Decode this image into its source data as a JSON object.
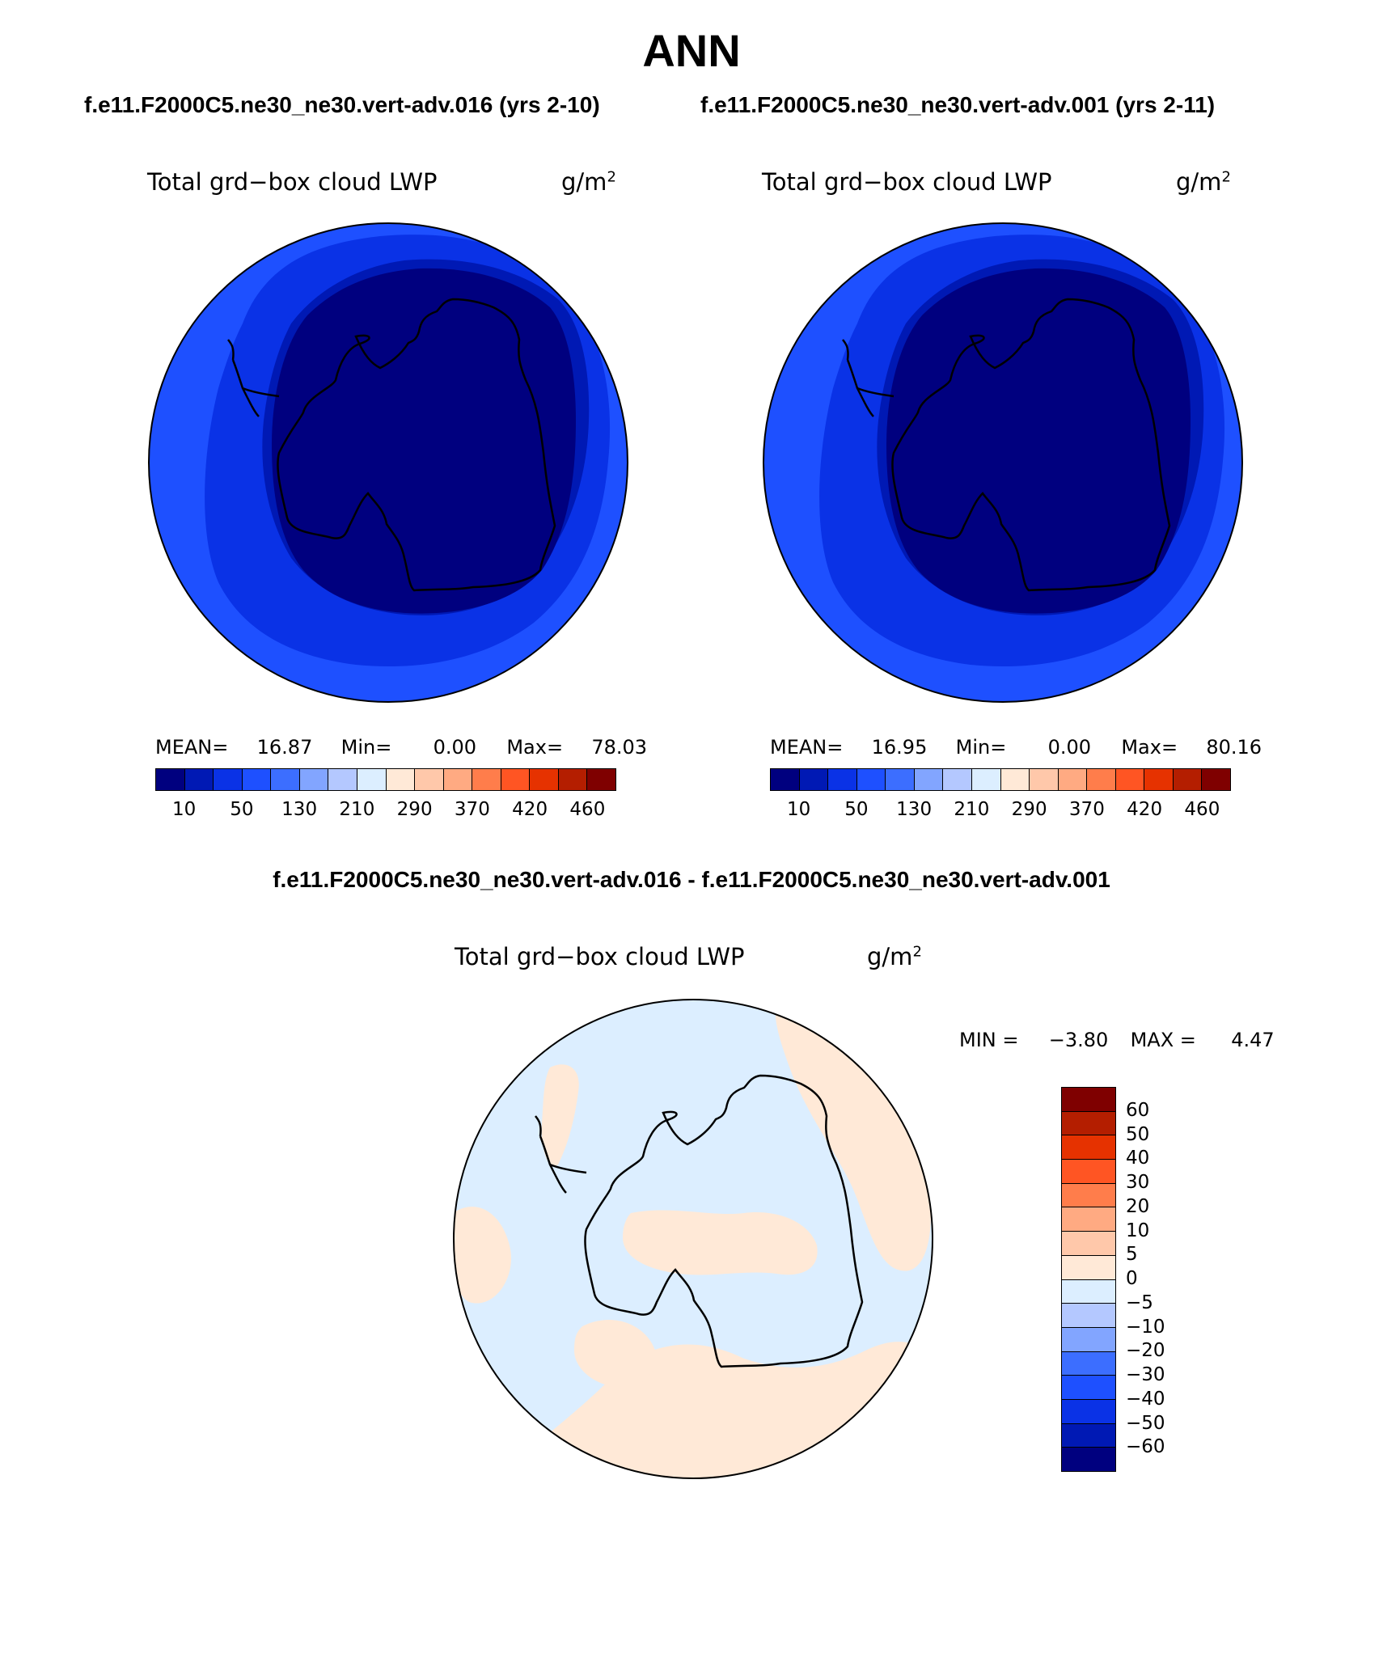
{
  "title": "ANN",
  "subtitles": {
    "left": "f.e11.F2000C5.ne30_ne30.vert-adv.016 (yrs 2-10)",
    "right": "f.e11.F2000C5.ne30_ne30.vert-adv.001 (yrs 2-11)",
    "diff": "f.e11.F2000C5.ne30_ne30.vert-adv.016 - f.e11.F2000C5.ne30_ne30.vert-adv.001"
  },
  "panels": [
    {
      "variable": "Total grd−box cloud LWP",
      "units_base": "g/m",
      "units_exp": "2",
      "stats": {
        "mean_label": "MEAN=",
        "mean": "16.87",
        "min_label": "Min=",
        "min": "0.00",
        "max_label": "Max=",
        "max": "78.03"
      }
    },
    {
      "variable": "Total grd−box cloud LWP",
      "units_base": "g/m",
      "units_exp": "2",
      "stats": {
        "mean_label": "MEAN=",
        "mean": "16.95",
        "min_label": "Min=",
        "min": "0.00",
        "max_label": "Max=",
        "max": "80.16"
      }
    },
    {
      "variable": "Total grd−box cloud LWP",
      "units_base": "g/m",
      "units_exp": "2",
      "stats": {
        "min_label": "MIN =",
        "min": "−3.80",
        "max_label": "MAX =",
        "max": "4.47"
      }
    }
  ],
  "colorbar_main": {
    "colors": [
      "#00007f",
      "#0019b4",
      "#0a32e6",
      "#1e50ff",
      "#3c6eff",
      "#82a5ff",
      "#b4c8ff",
      "#dceeff",
      "#ffe9d7",
      "#ffc8aa",
      "#ffaa82",
      "#ff7d4b",
      "#ff5523",
      "#e63200",
      "#b41e00",
      "#7f0000"
    ],
    "labels": [
      "10",
      "50",
      "130",
      "210",
      "290",
      "370",
      "420",
      "460"
    ]
  },
  "colorbar_diff": {
    "colors_top_to_bottom": [
      "#7f0000",
      "#b41e00",
      "#e63200",
      "#ff5523",
      "#ff7d4b",
      "#ffaa82",
      "#ffc8aa",
      "#ffe9d7",
      "#dceeff",
      "#b4c8ff",
      "#82a5ff",
      "#3c6eff",
      "#1e50ff",
      "#0a32e6",
      "#0019b4",
      "#00007f"
    ],
    "labels_top_to_bottom": [
      "60",
      "50",
      "40",
      "30",
      "20",
      "10",
      "5",
      "0",
      "−5",
      "−10",
      "−20",
      "−30",
      "−40",
      "−50",
      "−60"
    ]
  },
  "map_colors": {
    "ring_outer": "#1e50ff",
    "ring_mid": "#0a32e6",
    "ring_inner": "#0019b4",
    "core": "#00007f",
    "diff_neg": "#dceeff",
    "diff_pos": "#ffe9d7"
  }
}
